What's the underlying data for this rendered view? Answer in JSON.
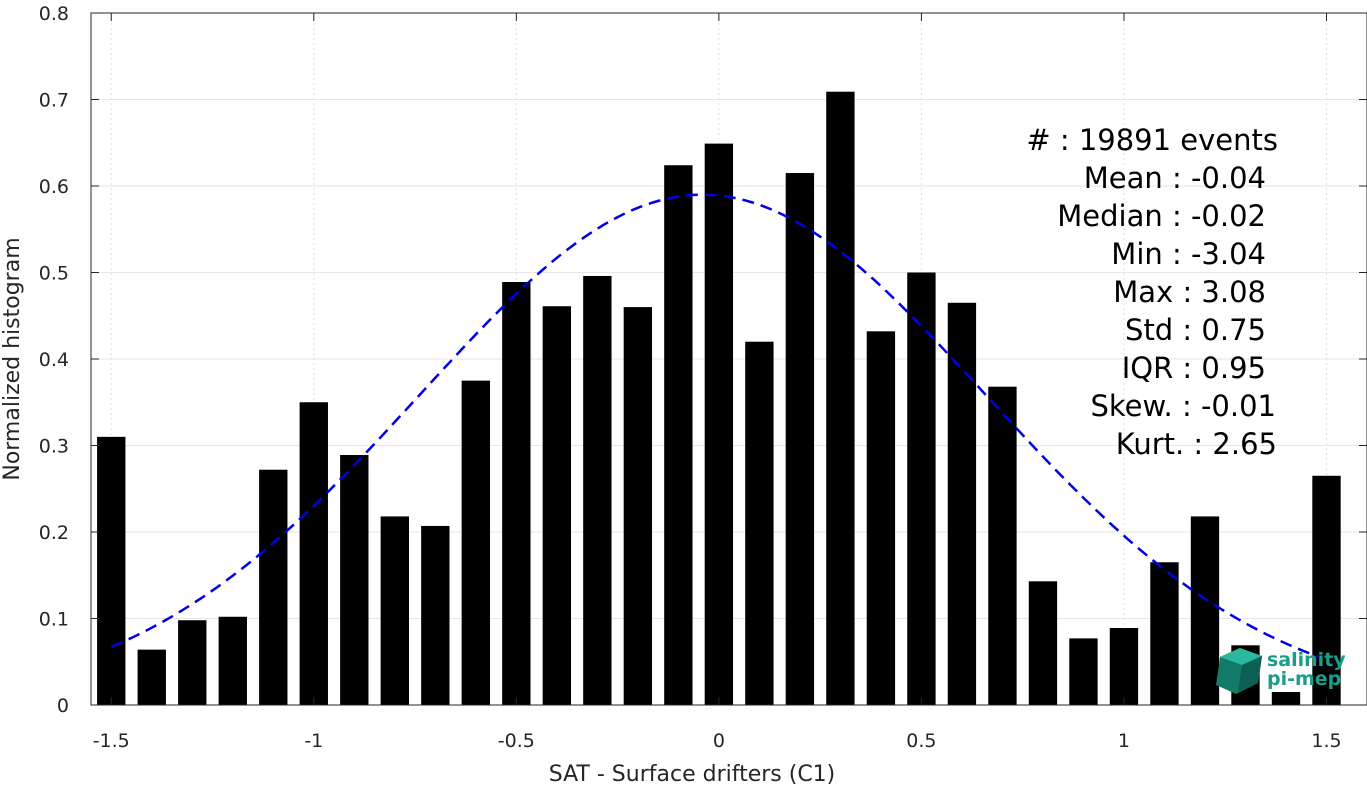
{
  "chart_data": {
    "type": "bar",
    "xlabel": "SAT - Surface drifters (C1)",
    "ylabel": "Normalized histogram",
    "xlim": [
      -1.55,
      1.6
    ],
    "ylim": [
      0,
      0.8
    ],
    "grid": true,
    "x_ticks": [
      -1.5,
      -1,
      -0.5,
      0,
      0.5,
      1,
      1.5
    ],
    "x_tick_labels": [
      "-1.5",
      "-1",
      "-0.5",
      "0",
      "0.5",
      "1",
      "1.5"
    ],
    "y_ticks": [
      0,
      0.1,
      0.2,
      0.3,
      0.4,
      0.5,
      0.6,
      0.7,
      0.8
    ],
    "y_tick_labels": [
      "0",
      "0.1",
      "0.2",
      "0.3",
      "0.4",
      "0.5",
      "0.6",
      "0.7",
      "0.8"
    ],
    "bar_color": "#000000",
    "bin_width": 0.1,
    "x": [
      -1.5,
      -1.4,
      -1.3,
      -1.2,
      -1.1,
      -1.0,
      -0.9,
      -0.8,
      -0.7,
      -0.6,
      -0.5,
      -0.4,
      -0.3,
      -0.2,
      -0.1,
      0.0,
      0.1,
      0.2,
      0.3,
      0.4,
      0.5,
      0.6,
      0.7,
      0.8,
      0.9,
      1.0,
      1.1,
      1.2,
      1.3,
      1.4,
      1.5
    ],
    "values": [
      0.31,
      0.064,
      0.098,
      0.102,
      0.272,
      0.35,
      0.289,
      0.218,
      0.207,
      0.375,
      0.489,
      0.461,
      0.496,
      0.46,
      0.624,
      0.649,
      0.42,
      0.615,
      0.709,
      0.432,
      0.5,
      0.465,
      0.368,
      0.143,
      0.077,
      0.089,
      0.165,
      0.218,
      0.069,
      0.015,
      0.265
    ],
    "fit": {
      "type": "gaussian",
      "color": "#0000e6",
      "line_style": "dashed",
      "mean": -0.04,
      "std": 0.7,
      "peak": 0.59,
      "x_range": [
        -1.5,
        1.48
      ]
    },
    "stats": [
      "#  : 19891 events",
      "Mean : -0.04",
      "Median : -0.02",
      "Min : -3.04",
      "Max : 3.08",
      "Std : 0.75",
      "IQR : 0.95",
      "Skew. : -0.01",
      "Kurt. : 2.65"
    ]
  },
  "logo": {
    "line1": "salinity",
    "line2": "pi-mep",
    "color": "#1a9e8a"
  }
}
